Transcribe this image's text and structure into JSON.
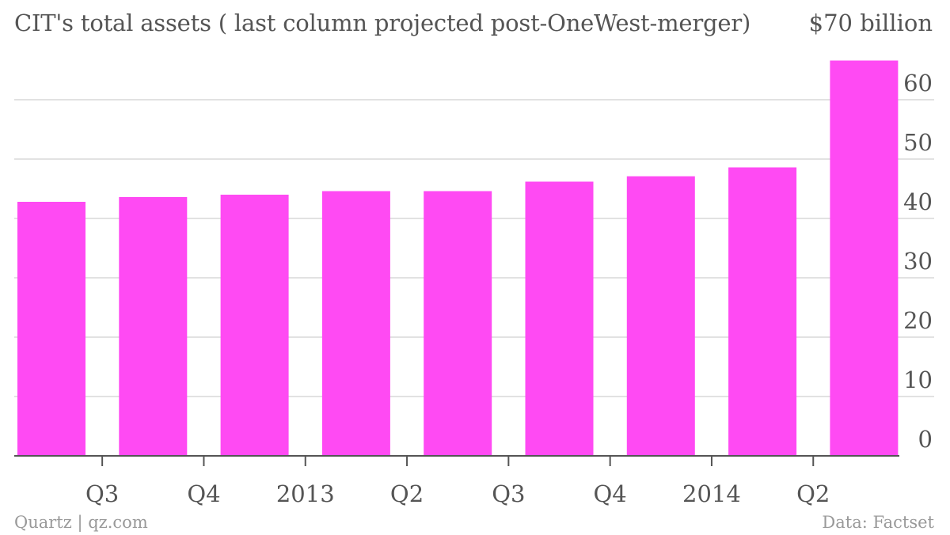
{
  "title": "CIT's total assets ( last column projected post-OneWest-merger)",
  "unit_label": "$70 billion",
  "source_left": "Quartz | qz.com",
  "source_right": "Data: Factset",
  "colors": {
    "bar": "#ff4af3",
    "grid": "#e2e2e2",
    "baseline": "#555555",
    "text": "#555555",
    "footer": "#999999"
  },
  "chart_data": {
    "type": "bar",
    "title": "CIT's total assets ( last column projected post-OneWest-merger)",
    "xlabel": "",
    "ylabel": "",
    "x_tick_labels": [
      "Q3",
      "Q4",
      "2013",
      "Q2",
      "Q3",
      "Q4",
      "2014",
      "Q2",
      ""
    ],
    "values": [
      42.8,
      43.6,
      44.0,
      44.6,
      44.6,
      46.2,
      47.1,
      48.6,
      66.6
    ],
    "ylim": [
      0,
      70
    ],
    "y_ticks": [
      0,
      10,
      20,
      30,
      40,
      50,
      60
    ],
    "y_axis_side": "right",
    "grid": true,
    "legend": "none"
  }
}
